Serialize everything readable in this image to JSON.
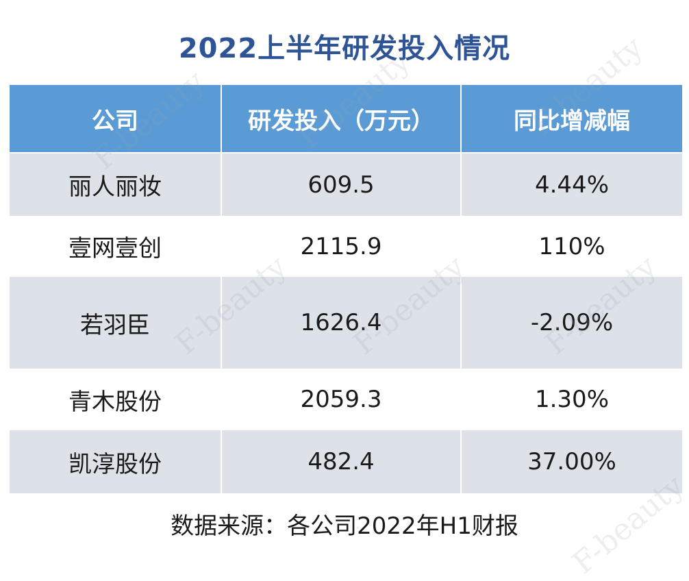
{
  "header": {
    "title": "2022上半年研发投入情况"
  },
  "table": {
    "columns": [
      "公司",
      "研发投入（万元）",
      "同比增减幅"
    ],
    "rows": [
      [
        "丽人丽妆",
        "609.5",
        "4.44%"
      ],
      [
        "壹网壹创",
        "2115.9",
        "110%"
      ],
      [
        "若羽臣",
        "1626.4",
        "-2.09%"
      ],
      [
        "青木股份",
        "2059.3",
        "1.30%"
      ],
      [
        "凯淳股份",
        "482.4",
        "37.00%"
      ]
    ]
  },
  "footer": {
    "source": "数据来源：各公司2022年H1财报"
  },
  "watermark": "F-beauty"
}
